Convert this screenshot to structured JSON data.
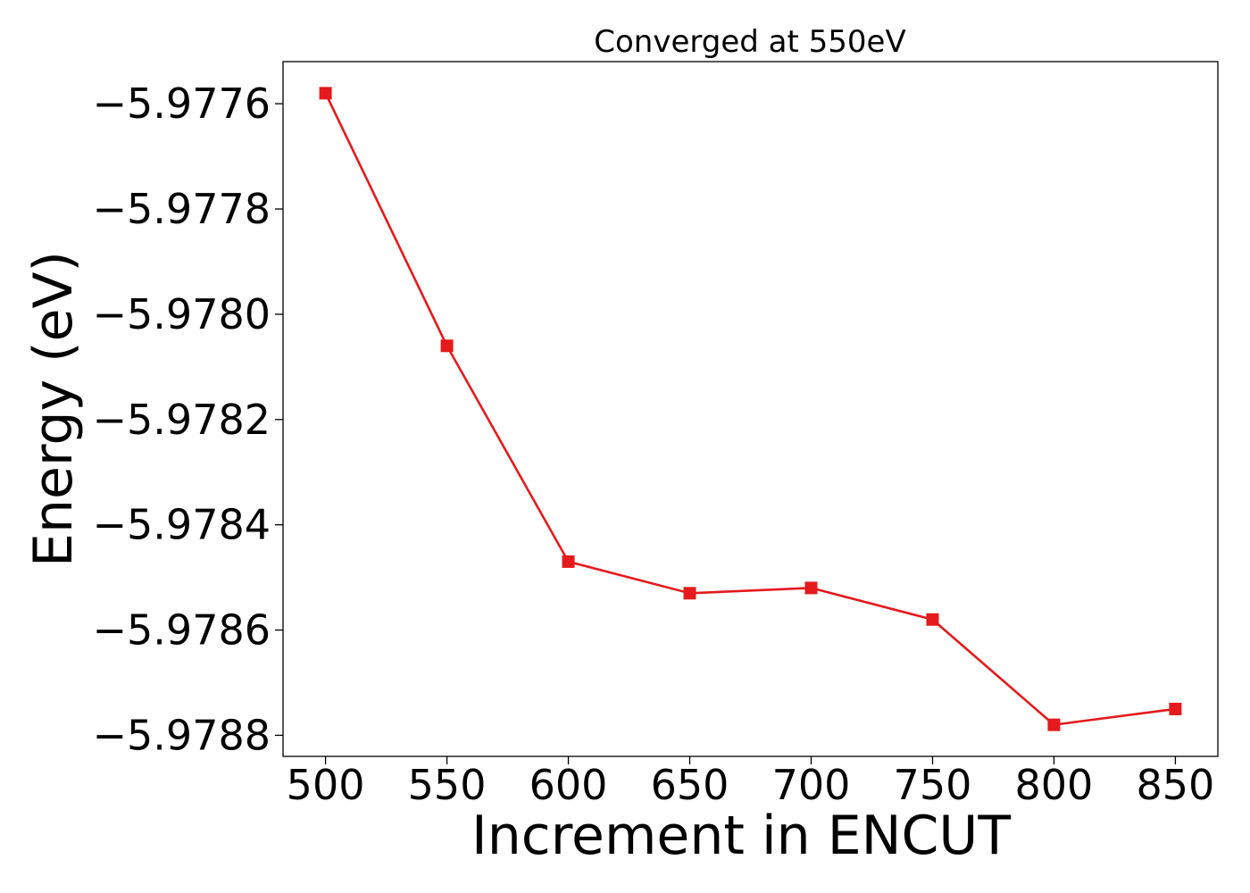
{
  "chart_data": {
    "type": "line",
    "title": "Converged at 550eV",
    "xlabel": "Increment in ENCUT",
    "ylabel": "Energy (eV)",
    "x": [
      500,
      550,
      600,
      650,
      700,
      750,
      800,
      850
    ],
    "series": [
      {
        "values": [
          -5.97758,
          -5.97806,
          -5.97847,
          -5.97853,
          -5.97852,
          -5.97858,
          -5.97878,
          -5.97875
        ],
        "color": "#e41a1c",
        "marker": "square"
      }
    ],
    "xticks": [
      "500",
      "550",
      "600",
      "650",
      "700",
      "750",
      "800",
      "850"
    ],
    "xtick_values": [
      500,
      550,
      600,
      650,
      700,
      750,
      800,
      850
    ],
    "yticks": [
      "−5.9776",
      "−5.9778",
      "−5.9780",
      "−5.9782",
      "−5.9784",
      "−5.9786",
      "−5.9788"
    ],
    "ytick_values": [
      -5.9776,
      -5.9778,
      -5.978,
      -5.9782,
      -5.9784,
      -5.9786,
      -5.9788
    ],
    "xlim": [
      482.5,
      867.5
    ],
    "ylim": [
      -5.97884,
      -5.97752
    ],
    "grid": false,
    "legend": false
  }
}
